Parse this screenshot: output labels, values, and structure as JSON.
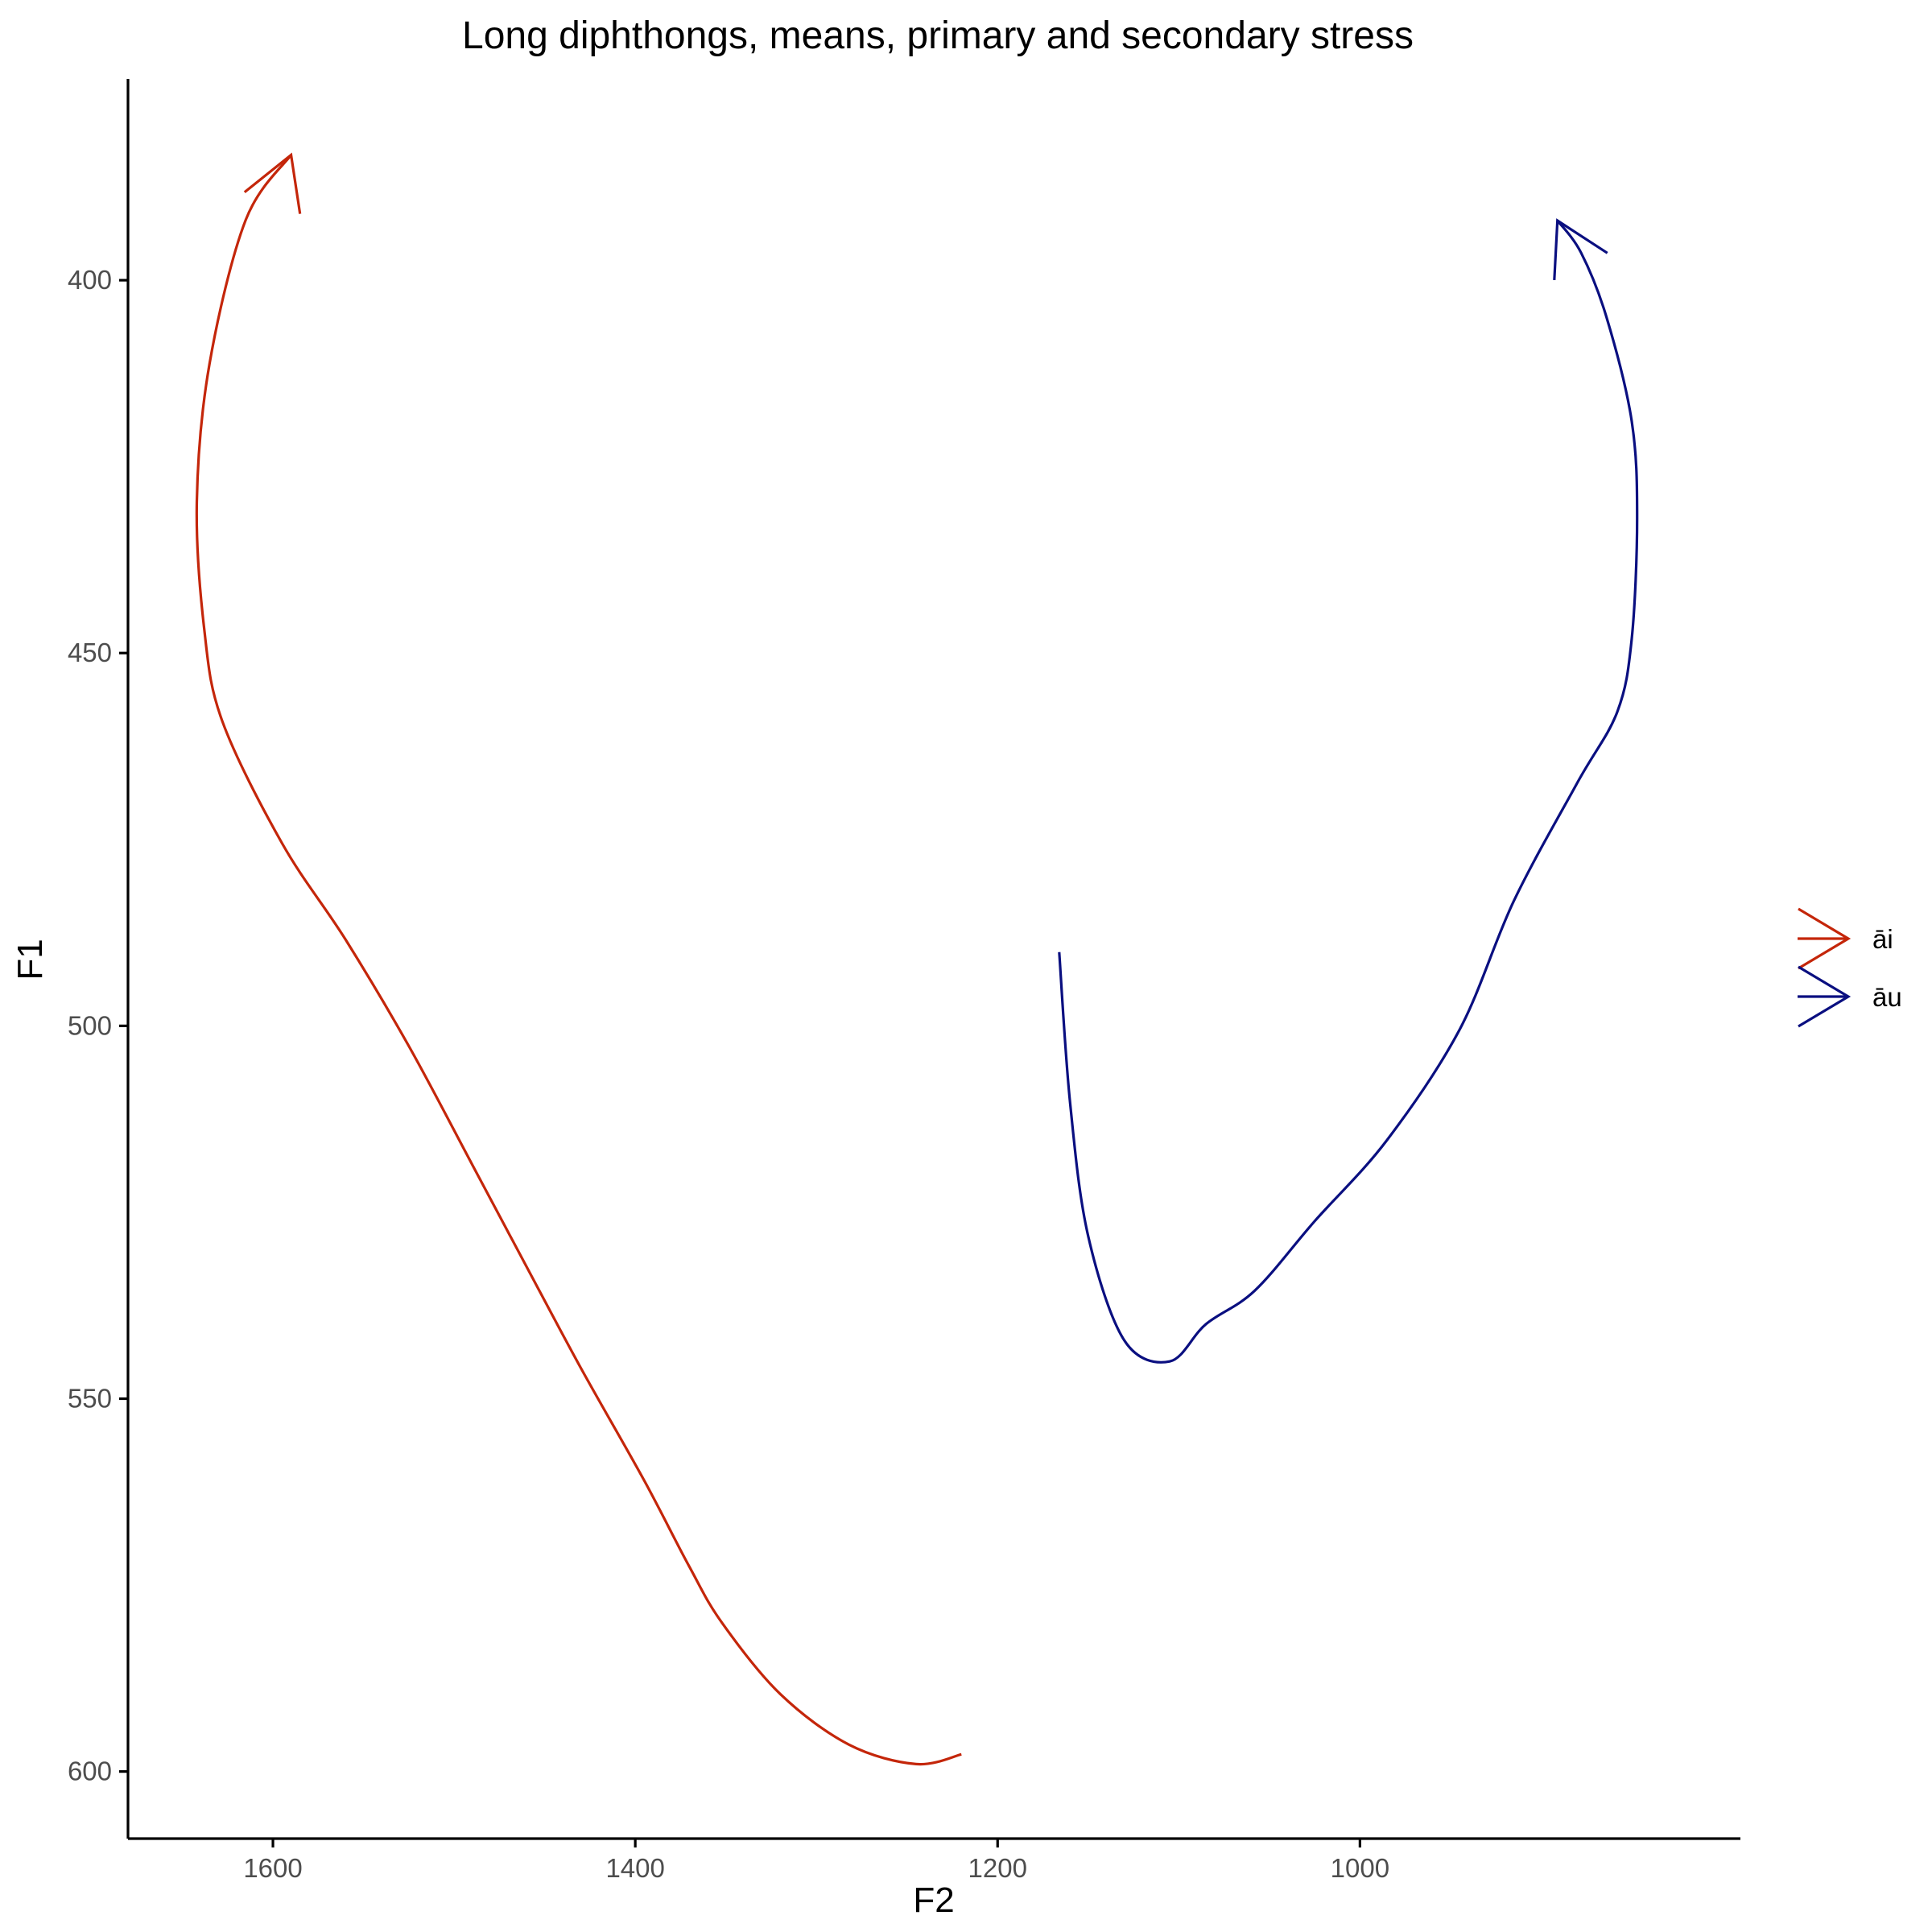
{
  "chart_data": {
    "type": "line",
    "title": "Long diphthongs, means, primary and secondary stress",
    "xlabel": "F2",
    "ylabel": "F1",
    "x_reversed": true,
    "y_reversed": true,
    "xlim": [
      1680,
      790
    ],
    "ylim": [
      373,
      609
    ],
    "x_ticks": [
      1600,
      1400,
      1200,
      1000
    ],
    "y_ticks": [
      400,
      450,
      500,
      550,
      600
    ],
    "x_tick_labels": [
      "1600",
      "1400",
      "1200",
      "1000"
    ],
    "y_tick_labels": [
      "400",
      "450",
      "500",
      "550",
      "600"
    ],
    "grid": false,
    "legend_position": "right",
    "series": [
      {
        "name": "āi",
        "color": "#C4260A",
        "points": [
          [
            1220,
            597.7
          ],
          [
            1245,
            599.0
          ],
          [
            1282,
            596.4
          ],
          [
            1320,
            589.6
          ],
          [
            1352,
            580.1
          ],
          [
            1370,
            572.6
          ],
          [
            1395,
            561.0
          ],
          [
            1430,
            545.9
          ],
          [
            1460,
            532.3
          ],
          [
            1490,
            518.6
          ],
          [
            1525,
            502.7
          ],
          [
            1560,
            488.4
          ],
          [
            1595,
            475.5
          ],
          [
            1628,
            459.1
          ],
          [
            1638,
            446.6
          ],
          [
            1642,
            429.7
          ],
          [
            1635,
            411.2
          ],
          [
            1615,
            391.9
          ],
          [
            1590,
            383.2
          ]
        ]
      },
      {
        "name": "āu",
        "color": "#0A0F80",
        "points": [
          [
            1166,
            490.1
          ],
          [
            1160,
            510.3
          ],
          [
            1150,
            528.2
          ],
          [
            1130,
            542.2
          ],
          [
            1105,
            545.0
          ],
          [
            1085,
            540.0
          ],
          [
            1058,
            535.5
          ],
          [
            1025,
            526.2
          ],
          [
            985,
            515.3
          ],
          [
            945,
            500.5
          ],
          [
            915,
            483.2
          ],
          [
            880,
            467.4
          ],
          [
            858,
            457.9
          ],
          [
            850,
            448.1
          ],
          [
            847,
            431.9
          ],
          [
            850,
            418.9
          ],
          [
            864,
            404.9
          ],
          [
            878,
            396.3
          ],
          [
            891,
            392.0
          ]
        ]
      }
    ]
  }
}
